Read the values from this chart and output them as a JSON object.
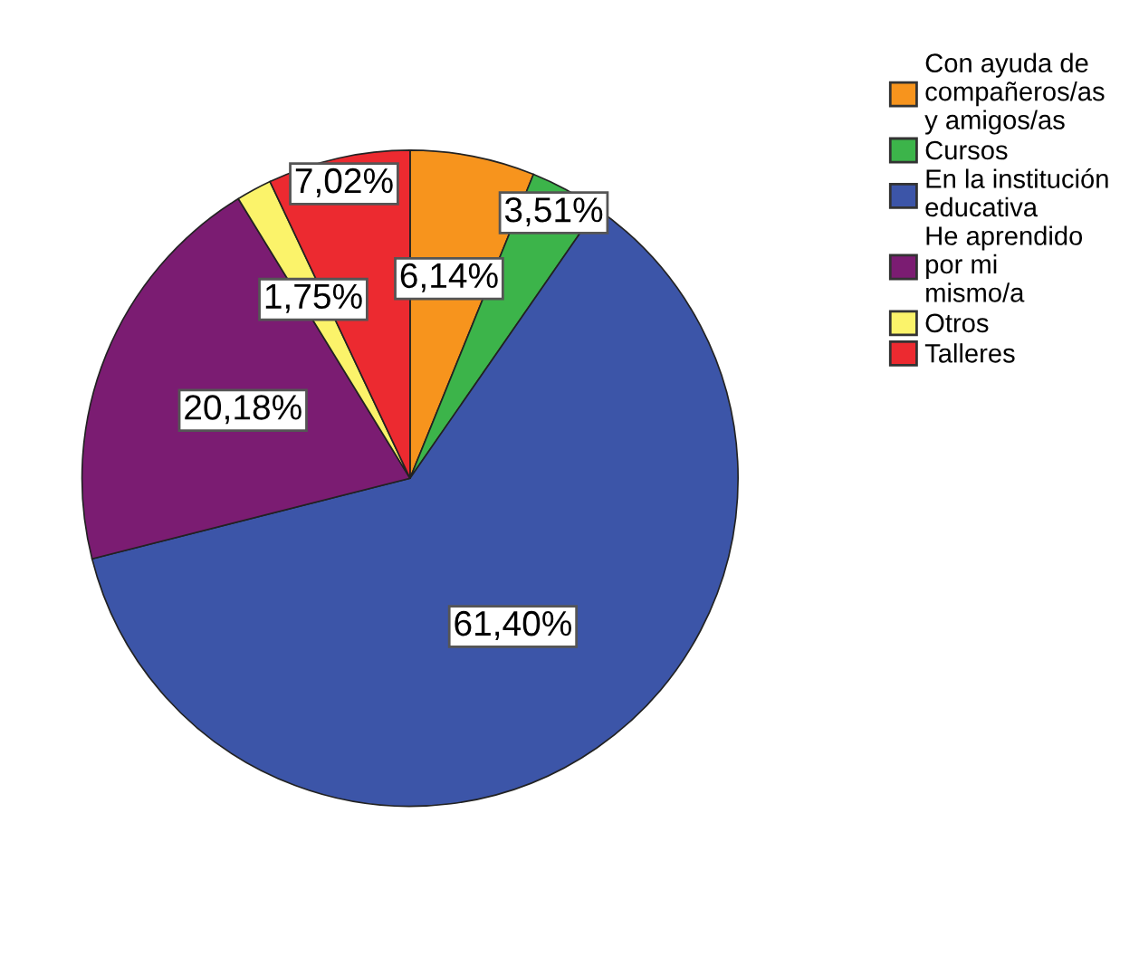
{
  "chart_data": {
    "type": "pie",
    "categories": [
      "Con ayuda de\ncompañeros/as\ny amigos/as",
      "Cursos",
      "En la institución\neducativa",
      "He aprendido\npor mi\nmismo/a",
      "Otros",
      "Talleres"
    ],
    "values": [
      6.14,
      3.51,
      61.4,
      20.18,
      1.75,
      7.02
    ],
    "colors": [
      "#f7941d",
      "#3cb44a",
      "#3c55a8",
      "#7b1c72",
      "#fbf36a",
      "#ec2a30"
    ],
    "value_labels": [
      "6,14%",
      "3,51%",
      "61,40%",
      "20,18%",
      "1,75%",
      "7,02%"
    ],
    "legend": "top right"
  }
}
